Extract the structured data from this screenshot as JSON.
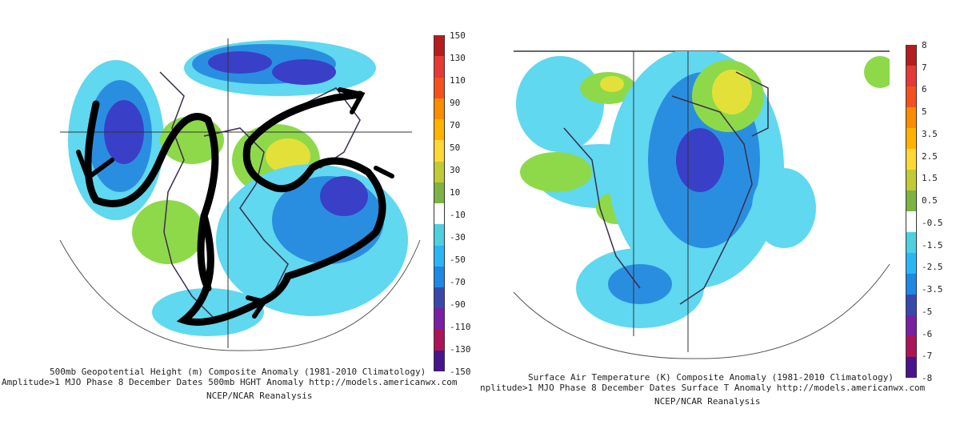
{
  "left_panel": {
    "title": "500mb Geopotential Height (m) Composite Anomaly (1981-2010 Climatology)",
    "subtitle": "Amplitude>1 MJO Phase 8 December Dates 500mb HGHT Anomaly http://models.americanwx.com",
    "source": "NCEP/NCAR Reanalysis",
    "colorbar_ticks": [
      "150",
      "130",
      "110",
      "90",
      "70",
      "50",
      "30",
      "10",
      "-10",
      "-30",
      "-50",
      "-70",
      "-90",
      "-110",
      "-130",
      "-150"
    ]
  },
  "right_panel": {
    "title": "Surface Air Temperature (K) Composite Anomaly (1981-2010 Climatology)",
    "subtitle": "nplitude>1 MJO Phase 8 December Dates Surface T Anomaly http://models.americanwx.com",
    "source": "NCEP/NCAR Reanalysis",
    "colorbar_ticks": [
      "8",
      "7",
      "6",
      "5",
      "3.5",
      "2.5",
      "1.5",
      "0.5",
      "-0.5",
      "-1.5",
      "-2.5",
      "-3.5",
      "-5",
      "-6",
      "-7",
      "-8"
    ]
  },
  "colors": {
    "colorbar": [
      "#b71c1c",
      "#e53935",
      "#f4511e",
      "#fb8c00",
      "#ffb300",
      "#fdd835",
      "#c0ca33",
      "#7cb342",
      "#ffffff",
      "#4dd0e1",
      "#29b6f6",
      "#1e88e5",
      "#3949ab",
      "#7b1fa2",
      "#ad1457",
      "#4a148c"
    ],
    "light_cyan": "#5fd8f0",
    "mid_blue": "#2a8ee0",
    "dark_blue": "#3a3fc8",
    "light_green": "#8ed94a",
    "yellow": "#e4e03a",
    "coast": "#3b2d4a"
  }
}
